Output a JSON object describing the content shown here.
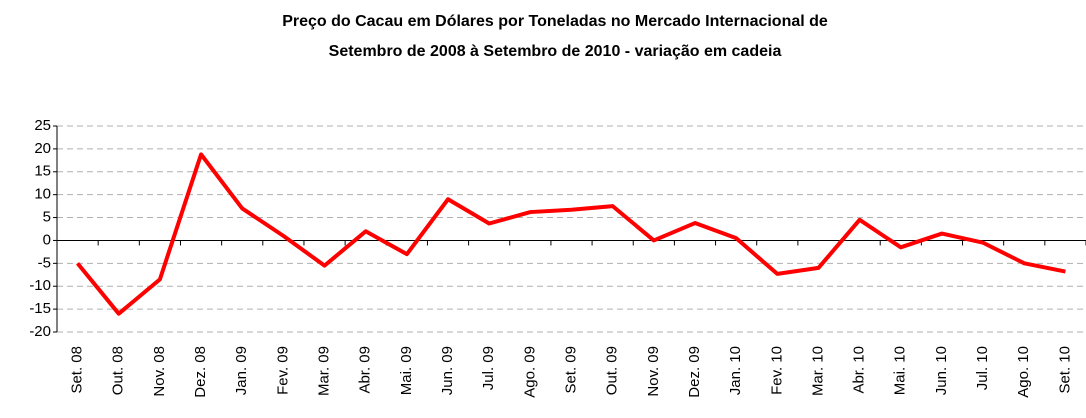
{
  "chart_data": {
    "type": "line",
    "title": [
      "Preço do Cacau em Dólares por Toneladas no Mercado Internacional de",
      "Setembro de 2008 à Setembro de 2010 - variação em cadeia"
    ],
    "categories": [
      "Set. 08",
      "Out. 08",
      "Nov. 08",
      "Dez. 08",
      "Jan. 09",
      "Fev. 09",
      "Mar. 09",
      "Abr. 09",
      "Mai. 09",
      "Jun. 09",
      "Jul. 09",
      "Ago. 09",
      "Set. 09",
      "Out. 09",
      "Nov. 09",
      "Dez. 09",
      "Jan. 10",
      "Fev. 10",
      "Mar. 10",
      "Abr. 10",
      "Mai. 10",
      "Jun. 10",
      "Jul. 10",
      "Ago. 10",
      "Set. 10"
    ],
    "values": [
      -5,
      -16,
      -8.5,
      18.8,
      7,
      1,
      -5.5,
      2,
      -3,
      9,
      3.7,
      6.2,
      6.7,
      7.5,
      0,
      3.8,
      0.5,
      -7.3,
      -6,
      4.5,
      -1.5,
      1.5,
      -0.5,
      -5,
      -6.8
    ],
    "color": "#ff0000",
    "ylim": [
      -20,
      25
    ],
    "yticks": [
      -20,
      -15,
      -10,
      -5,
      0,
      5,
      10,
      15,
      20,
      25
    ],
    "grid": true
  }
}
